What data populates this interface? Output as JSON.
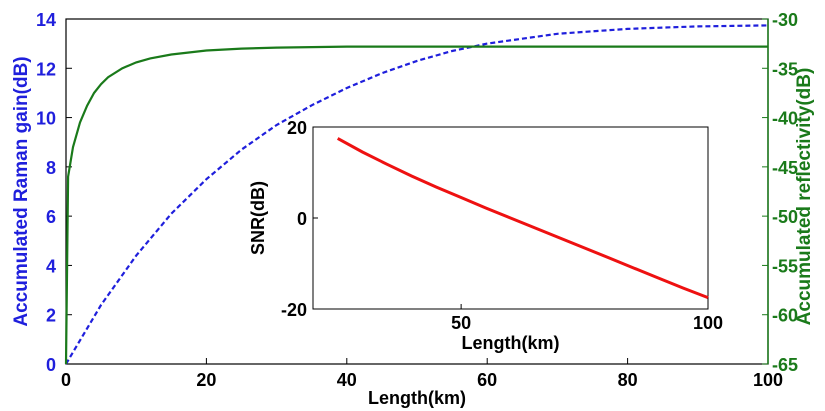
{
  "chart_data": [
    {
      "type": "line",
      "xlabel": "Length(km)",
      "ylabel_left": "Accumulated Raman gain(dB)",
      "ylabel_right": "Accumulated reflectivity(dB)",
      "xlim": [
        0,
        100
      ],
      "ylim_left": [
        0,
        14
      ],
      "ylim_right": [
        -65,
        -30
      ],
      "x_ticks": [
        0,
        20,
        40,
        60,
        80,
        100
      ],
      "y_ticks_left": [
        0,
        2,
        4,
        6,
        8,
        10,
        12,
        14
      ],
      "y_ticks_right": [
        -65,
        -60,
        -55,
        -50,
        -45,
        -40,
        -35,
        -30
      ],
      "grid": false,
      "colors": {
        "left_axis": "#1f1fdc",
        "right_axis": "#1a7a1a"
      },
      "series": [
        {
          "axis": "left",
          "color": "#1f1fdc",
          "style": "dashed",
          "x": [
            0,
            5,
            10,
            15,
            20,
            25,
            30,
            35,
            40,
            45,
            50,
            55,
            60,
            65,
            70,
            75,
            80,
            85,
            90,
            95,
            100
          ],
          "y": [
            0,
            2.4,
            4.4,
            6.1,
            7.5,
            8.7,
            9.7,
            10.5,
            11.2,
            11.8,
            12.3,
            12.7,
            13.0,
            13.2,
            13.4,
            13.5,
            13.6,
            13.65,
            13.7,
            13.72,
            13.74
          ]
        },
        {
          "axis": "right",
          "color": "#1a7a1a",
          "style": "solid",
          "x": [
            0,
            0.3,
            1,
            2,
            3,
            4,
            5,
            6,
            8,
            10,
            12,
            15,
            20,
            25,
            30,
            40,
            50,
            60,
            70,
            80,
            90,
            100
          ],
          "y": [
            -65,
            -46,
            -43,
            -40.5,
            -38.8,
            -37.5,
            -36.6,
            -35.9,
            -35.0,
            -34.4,
            -34.0,
            -33.6,
            -33.2,
            -33.0,
            -32.9,
            -32.8,
            -32.8,
            -32.8,
            -32.8,
            -32.8,
            -32.8,
            -32.8
          ]
        }
      ]
    },
    {
      "type": "line",
      "xlabel": "Length(km)",
      "ylabel": "SNR(dB)",
      "xlim": [
        20,
        100
      ],
      "ylim": [
        -20,
        20
      ],
      "x_ticks": [
        50,
        100
      ],
      "y_ticks": [
        -20,
        0,
        20
      ],
      "grid": false,
      "series": [
        {
          "color": "#ee1111",
          "style": "solid",
          "x": [
            25,
            30,
            35,
            40,
            45,
            50,
            55,
            60,
            65,
            70,
            75,
            80,
            85,
            90,
            95,
            100
          ],
          "y": [
            17.5,
            14.5,
            11.8,
            9.2,
            6.8,
            4.5,
            2.2,
            0,
            -2.2,
            -4.4,
            -6.6,
            -8.8,
            -11.0,
            -13.2,
            -15.4,
            -17.5
          ]
        }
      ]
    }
  ]
}
